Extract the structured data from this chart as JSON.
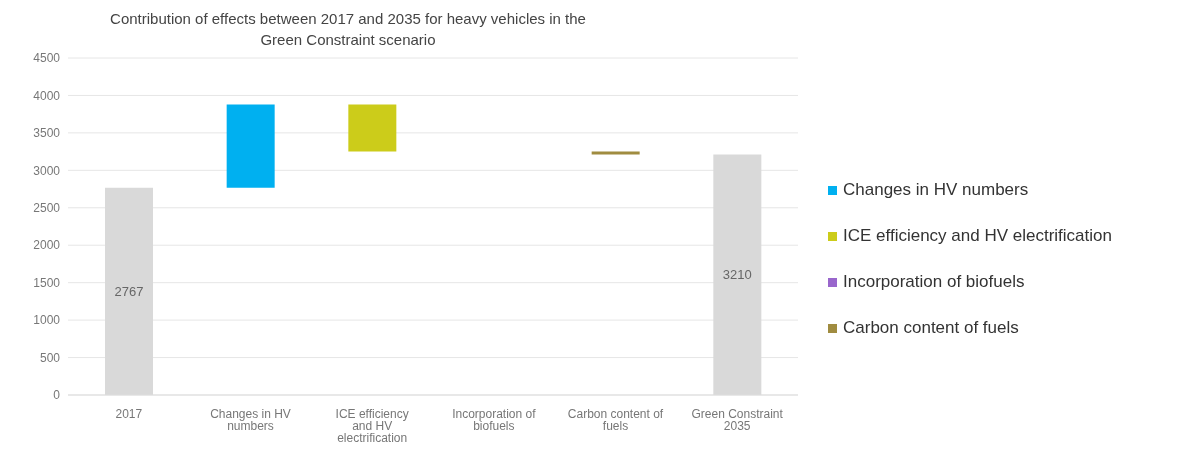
{
  "chart_data": {
    "type": "bar",
    "title": "Contribution of effects between 2017 and 2035 for heavy vehicles in the Green Constraint scenario",
    "categories": [
      "2017",
      "Changes in HV numbers",
      "ICE efficiency and HV electrification",
      "Incorporation of biofuels",
      "Carbon content of fuels",
      "Green Constraint 2035"
    ],
    "series": [
      {
        "color": "#d9d9d9",
        "values": [
          2767,
          null,
          null,
          null,
          null,
          3210
        ],
        "base": [
          0,
          null,
          null,
          null,
          null,
          0
        ],
        "value_labels": [
          "2767",
          null,
          null,
          null,
          null,
          "3210"
        ]
      },
      {
        "name": "Changes in HV numbers",
        "color": "#00b0f0",
        "values": [
          null,
          1113,
          null,
          null,
          null,
          null
        ],
        "base": [
          null,
          2767,
          null,
          null,
          null,
          null
        ]
      },
      {
        "name": "ICE efficiency and HV electrification",
        "color": "#cccc1a",
        "values": [
          null,
          null,
          -630,
          null,
          null,
          null
        ],
        "base": [
          null,
          null,
          3880,
          null,
          null,
          null
        ]
      },
      {
        "name": "Incorporation of biofuels",
        "color": "#9966cc",
        "values": [
          null,
          null,
          null,
          null,
          null,
          null
        ],
        "base": [
          null,
          null,
          null,
          null,
          null,
          null
        ]
      },
      {
        "name": "Carbon content of fuels",
        "color": "#a08c40",
        "values": [
          null,
          null,
          null,
          null,
          -40,
          null
        ],
        "base": [
          null,
          null,
          null,
          null,
          3250,
          null
        ]
      }
    ],
    "ylim": [
      0,
      4500
    ],
    "yticks": [
      0,
      500,
      1000,
      1500,
      2000,
      2500,
      3000,
      3500,
      4000,
      4500
    ],
    "grid": "y",
    "legend": "right"
  }
}
